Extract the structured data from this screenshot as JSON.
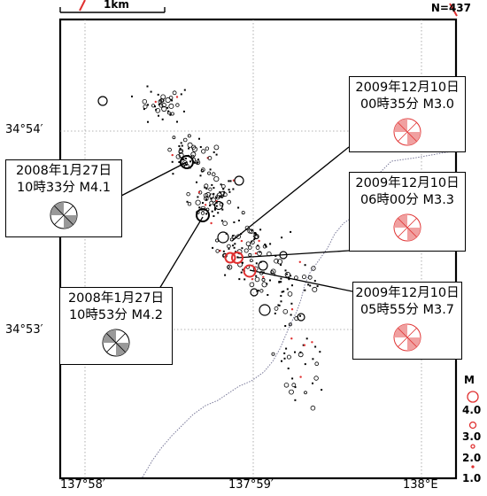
{
  "header": {
    "count": "N=437",
    "scale": "1km"
  },
  "axes": {
    "lat_labels": [
      "34°54′",
      "34°53′"
    ],
    "lon_labels": [
      "137°58′",
      "137°59′",
      "138°E"
    ]
  },
  "legend": {
    "title": "M",
    "magnitudes": [
      "4.0",
      "3.0",
      "2.0",
      "1.0"
    ],
    "color": "#e03030"
  },
  "events": [
    {
      "line1": "2008年1月27日",
      "line2": "10時33分 M4.1",
      "mechanism": "black-white"
    },
    {
      "line1": "2008年1月27日",
      "line2": "10時53分 M4.2",
      "mechanism": "black-white"
    },
    {
      "line1": "2009年12月10日",
      "line2": "00時35分 M3.0",
      "mechanism": "red-white"
    },
    {
      "line1": "2009年12月10日",
      "line2": "06時00分 M3.3",
      "mechanism": "red-white"
    },
    {
      "line1": "2009年12月10日",
      "line2": "05時55分 M3.7",
      "mechanism": "red-white"
    }
  ]
}
